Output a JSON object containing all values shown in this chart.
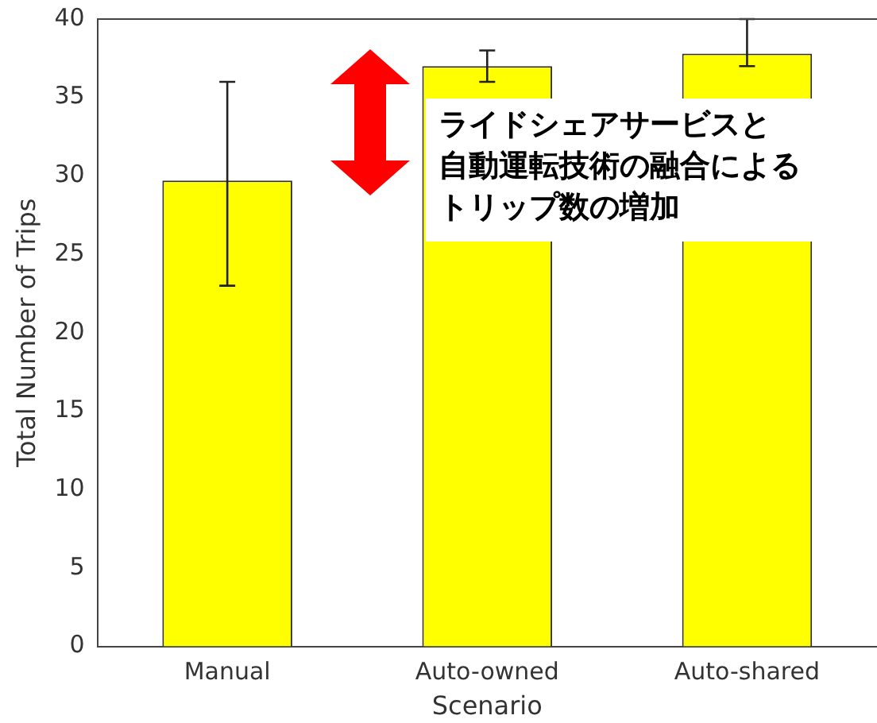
{
  "chart_data": {
    "type": "bar",
    "xlabel": "Scenario",
    "ylabel": "Total Number of Trips",
    "categories": [
      "Manual",
      "Auto-owned",
      "Auto-shared"
    ],
    "values": [
      29.7,
      37,
      37.8
    ],
    "color": "#ffff00",
    "errors": [
      [
        23,
        36
      ],
      [
        36,
        38
      ],
      [
        37,
        40
      ]
    ],
    "ylim": [
      0,
      40
    ],
    "yticks": [
      0,
      5,
      10,
      15,
      20,
      25,
      30,
      35,
      40
    ],
    "grid": false,
    "legend": false,
    "annotations": [
      "ライドシェアサービスと",
      "自動運転技術の融合による",
      "トリップ数の増加"
    ]
  }
}
